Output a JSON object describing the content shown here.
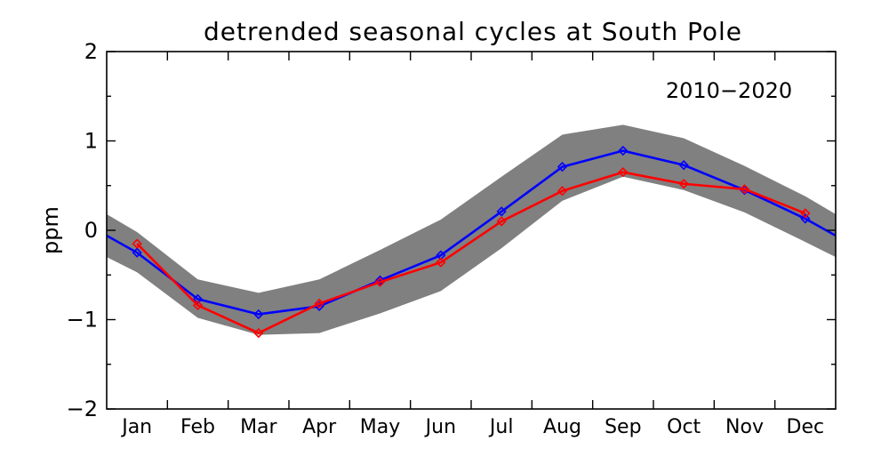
{
  "chart_data": {
    "type": "line",
    "title": "detrended seasonal cycles at South Pole",
    "annotation": "2010−2020",
    "ylabel": "ppm",
    "xlabel": "",
    "categories": [
      "Jan",
      "Feb",
      "Mar",
      "Apr",
      "May",
      "Jun",
      "Jul",
      "Aug",
      "Sep",
      "Oct",
      "Nov",
      "Dec"
    ],
    "xlim": [
      0,
      12
    ],
    "ylim": [
      -2,
      2
    ],
    "yticks": [
      -2,
      -1,
      0,
      1,
      2
    ],
    "grid": false,
    "band": {
      "color": "#808080",
      "x": [
        0.0,
        0.5,
        1.5,
        2.5,
        3.5,
        4.5,
        5.5,
        6.5,
        7.5,
        8.5,
        9.5,
        10.5,
        11.5,
        12.0
      ],
      "upper": [
        0.18,
        -0.02,
        -0.55,
        -0.7,
        -0.55,
        -0.22,
        0.12,
        0.6,
        1.07,
        1.18,
        1.03,
        0.72,
        0.38,
        0.18
      ],
      "lower": [
        -0.3,
        -0.47,
        -0.98,
        -1.17,
        -1.15,
        -0.93,
        -0.68,
        -0.2,
        0.33,
        0.6,
        0.45,
        0.2,
        -0.13,
        -0.3
      ]
    },
    "series": [
      {
        "color": "#0000ff",
        "x": [
          0.5,
          1.5,
          2.5,
          3.5,
          4.5,
          5.5,
          6.5,
          7.5,
          8.5,
          9.5,
          10.5,
          11.5
        ],
        "values": [
          -0.25,
          -0.77,
          -0.94,
          -0.85,
          -0.56,
          -0.28,
          0.21,
          0.71,
          0.89,
          0.73,
          0.45,
          0.13
        ],
        "wrap": true,
        "marker": "diamond"
      },
      {
        "color": "#ff0000",
        "x": [
          0.5,
          1.5,
          2.5,
          3.5,
          4.5,
          5.5,
          6.5,
          7.5,
          8.5,
          9.5,
          10.5,
          11.5
        ],
        "values": [
          -0.15,
          -0.84,
          -1.15,
          -0.82,
          -0.58,
          -0.36,
          0.1,
          0.44,
          0.65,
          0.52,
          0.46,
          0.19
        ],
        "wrap": false,
        "marker": "diamond"
      }
    ]
  }
}
